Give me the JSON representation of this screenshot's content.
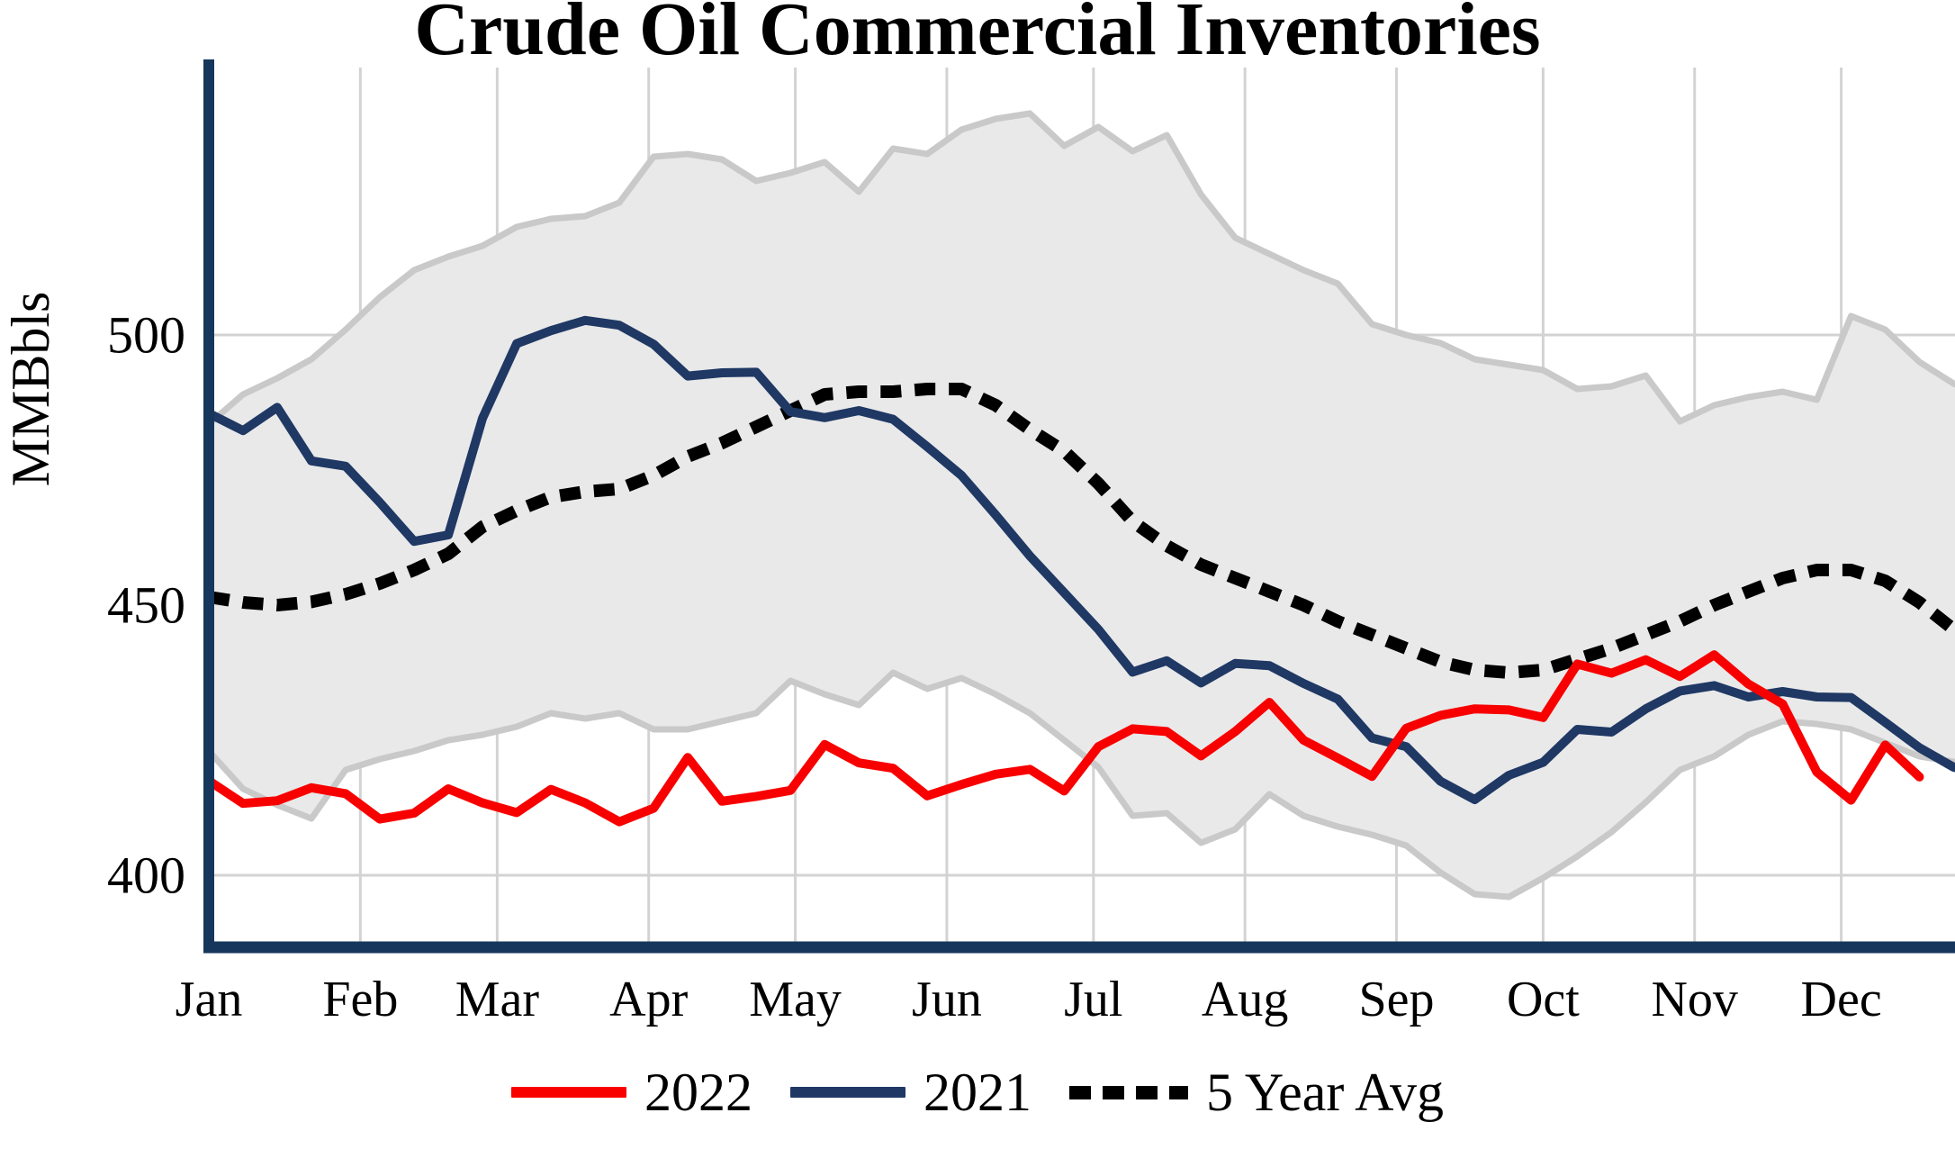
{
  "title": "Crude Oil Commercial Inventories",
  "y_axis": {
    "label": "MMBbls",
    "ticks": [
      400,
      450,
      500
    ]
  },
  "x_axis": {
    "months": [
      "Jan",
      "Feb",
      "Mar",
      "Apr",
      "May",
      "Jun",
      "Jul",
      "Aug",
      "Sep",
      "Oct",
      "Nov",
      "Dec"
    ],
    "month_start_days": [
      0,
      31,
      59,
      90,
      120,
      151,
      181,
      212,
      243,
      273,
      304,
      334
    ]
  },
  "legend": [
    {
      "label": "2022",
      "style": "solid",
      "color": "#F80000"
    },
    {
      "label": "2021",
      "style": "solid",
      "color": "#1F3864"
    },
    {
      "label": "5 Year Avg",
      "style": "dotted",
      "color": "#000000"
    }
  ],
  "colors": {
    "red": "#F80000",
    "navy": "#1F3864",
    "dotted": "#000000",
    "band_fill": "#E9E9E9",
    "band_edge": "#C9C9C9",
    "grid": "#D3D3D3",
    "axis": "#16365C"
  },
  "chart_data": {
    "type": "line",
    "title": "Crude Oil Commercial Inventories",
    "xlabel": "",
    "ylabel": "MMBbls",
    "unit": "MMBbls (million barrels)",
    "x_mode": "weekly day-of-year, Jan 1 = 0",
    "ylim": [
      387,
      549
    ],
    "grid": true,
    "legend_position": "bottom-center",
    "days": [
      0,
      7,
      14,
      21,
      28,
      35,
      42,
      49,
      56,
      63,
      70,
      77,
      84,
      91,
      98,
      105,
      112,
      119,
      126,
      133,
      140,
      147,
      154,
      161,
      168,
      175,
      182,
      189,
      196,
      203,
      210,
      217,
      224,
      231,
      238,
      245,
      252,
      259,
      266,
      273,
      280,
      287,
      294,
      301,
      308,
      315,
      322,
      329,
      336,
      343,
      350,
      357,
      364
    ],
    "series": [
      {
        "name": "2022",
        "color": "#F80000",
        "dash": false,
        "values": [
          417.5,
          413.3,
          413.8,
          416.2,
          415.1,
          410.4,
          411.5,
          416,
          413.4,
          411.6,
          415.9,
          413.4,
          409.9,
          412.4,
          421.8,
          413.7,
          414.6,
          415.7,
          424.2,
          420.8,
          419.8,
          414.7,
          416.8,
          418.7,
          419.6,
          415.6,
          423.8,
          427.1,
          426.6,
          422.1,
          426.6,
          432,
          425,
          421.7,
          418.3,
          427.2,
          429.6,
          430.8,
          430.6,
          429.2,
          439.1,
          437.4,
          439.9,
          436.8,
          440.8,
          435.4,
          431.7,
          419.1,
          413.9,
          424.1,
          418.2
        ]
      },
      {
        "name": "2021",
        "color": "#1F3864",
        "dash": false,
        "values": [
          485.5,
          482.3,
          486.6,
          476.7,
          475.7,
          469,
          461.8,
          463,
          484.6,
          498.4,
          500.8,
          502.7,
          501.8,
          498.3,
          492.4,
          493,
          493.1,
          485.8,
          484.7,
          486,
          484.4,
          479.3,
          474,
          466.7,
          459.1,
          452.3,
          445.5,
          437.6,
          439.7,
          435.6,
          439.2,
          438.8,
          435.5,
          432.6,
          425.4,
          423.8,
          417.4,
          414,
          418.5,
          420.9,
          427,
          426.5,
          430.8,
          434.1,
          435.1,
          433,
          434,
          433,
          432.9,
          428.3,
          423.6,
          420,
          418.5
        ]
      },
      {
        "name": "5 Year Avg",
        "color": "#000000",
        "dash": true,
        "values": [
          451.5,
          450.5,
          450,
          450.6,
          452,
          454,
          456.5,
          459.5,
          464.5,
          467.5,
          470,
          471,
          471.5,
          474,
          477.5,
          480,
          483,
          486,
          489,
          489.5,
          489.5,
          490,
          490,
          487,
          482.5,
          478.5,
          472.5,
          465.5,
          461,
          457.5,
          455,
          452.5,
          450,
          447,
          444.5,
          442,
          439.5,
          438,
          437.5,
          438,
          440,
          442,
          444.5,
          447,
          450,
          452.5,
          455,
          456.5,
          456.5,
          454.5,
          450.5,
          445.5,
          441
        ]
      }
    ],
    "band": {
      "name": "5 Year Range",
      "fill": "#E9E9E9",
      "edge": "#C9C9C9",
      "upper": [
        483.5,
        489,
        492,
        495.5,
        501,
        507,
        512,
        514.5,
        516.5,
        520,
        521.5,
        522,
        524.5,
        533,
        533.5,
        532.5,
        528.5,
        530,
        532,
        526.5,
        534.5,
        533.5,
        538,
        540,
        541,
        535,
        538.5,
        534,
        537,
        526,
        518,
        515,
        512,
        509.5,
        502,
        500,
        498.5,
        495.5,
        494.5,
        493.5,
        490,
        490.5,
        492.5,
        484,
        487,
        488.5,
        489.5,
        488,
        503.5,
        501,
        495,
        491,
        488.5
      ],
      "lower": [
        423,
        416,
        413,
        410.5,
        419.5,
        421.5,
        423,
        425,
        426,
        427.5,
        430,
        429,
        430,
        427,
        427,
        428.5,
        430,
        436,
        433.5,
        431.5,
        437.5,
        434.5,
        436.5,
        433.5,
        430,
        425,
        420,
        411,
        411.5,
        406,
        408.5,
        415,
        411,
        409,
        407.5,
        405.5,
        400.5,
        396.5,
        396,
        399.5,
        403.5,
        408,
        413.5,
        419.5,
        422,
        426,
        428.5,
        428,
        427,
        424.5,
        422,
        421,
        420.5
      ]
    }
  }
}
